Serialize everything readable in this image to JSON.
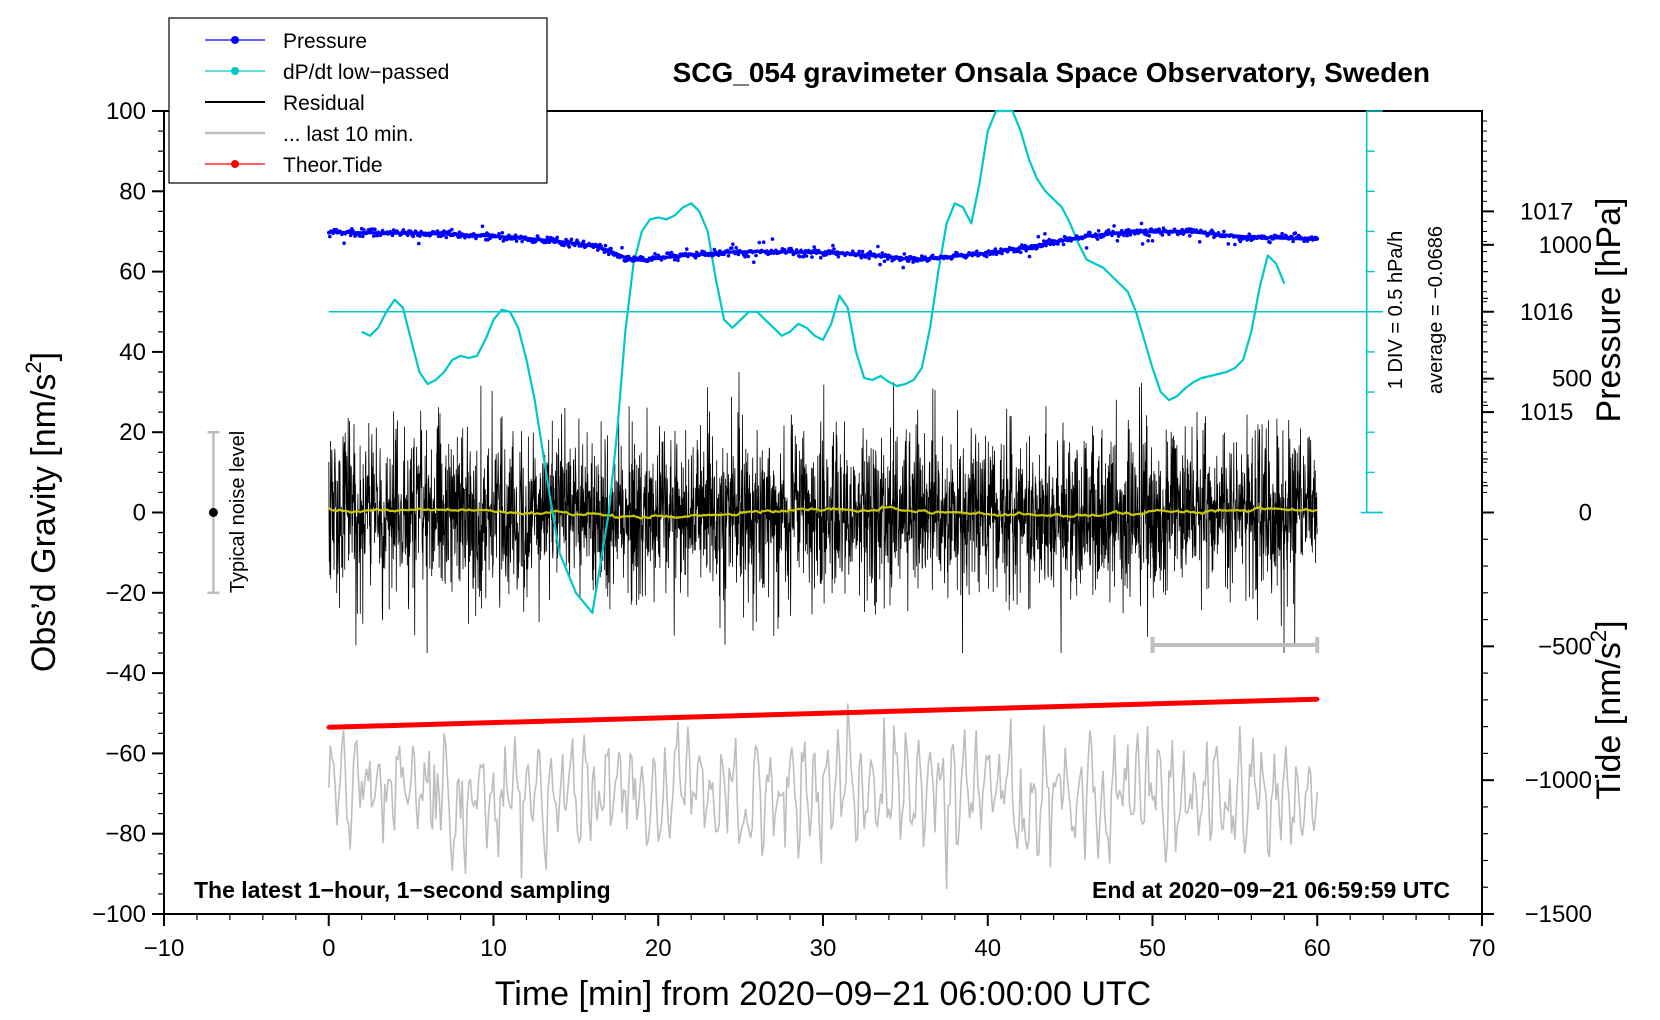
{
  "chart_data": {
    "type": "line",
    "title": "SCG_054 gravimeter Onsala Space Observatory, Sweden",
    "xlabel": "Time [min] from 2020−09−21 06:00:00 UTC",
    "ylabel_left_prefix": "Obs’d Gravity [nm/s",
    "ylabel_left_sup": "2",
    "ylabel_left_suffix": "]",
    "ylabel_right_pressure": "Pressure [hPa]",
    "ylabel_right_tide_prefix": "Tide [nm/s",
    "ylabel_right_tide_sup": "2",
    "ylabel_right_tide_suffix": "]",
    "xlim": [
      -10,
      70
    ],
    "ylim": [
      -100,
      100
    ],
    "x_ticks": [
      -10,
      0,
      10,
      20,
      30,
      40,
      50,
      60,
      70
    ],
    "x_tick_labels": [
      "−10",
      "0",
      "10",
      "20",
      "30",
      "40",
      "50",
      "60",
      "70"
    ],
    "y_ticks": [
      -100,
      -80,
      -60,
      -40,
      -20,
      0,
      20,
      40,
      60,
      80,
      100
    ],
    "y_tick_labels": [
      "−100",
      "−80",
      "−60",
      "−40",
      "−20",
      "0",
      "20",
      "40",
      "60",
      "80",
      "100"
    ],
    "pressure_ticks": [
      1015,
      1016,
      1017
    ],
    "pressure_tick_labels": [
      "1015",
      "1016",
      "1017"
    ],
    "pressure_scale": {
      "hpa_at_gravity_50": 1016,
      "gravity_units_per_hpa": 25
    },
    "tide_ticks": [
      1000,
      500,
      0,
      -500,
      -1000,
      -1500
    ],
    "tide_tick_labels": [
      "1000",
      "500",
      "0",
      "−500",
      "−1000",
      "−1500"
    ],
    "tide_scale": {
      "tide_at_gravity_minus100": -1500,
      "tide_units_per_gravity": 15
    },
    "legend_location": "top-left",
    "legend": [
      {
        "label": "Pressure",
        "color": "#0000ff",
        "marker": true
      },
      {
        "label": "dP/dt low−passed",
        "color": "#00c8c8",
        "marker": true
      },
      {
        "label": "Residual",
        "color": "#000000",
        "marker": false
      },
      {
        "label": "... last 10 min.",
        "color": "#bebebe",
        "marker": false
      },
      {
        "label": "Theor.Tide",
        "color": "#ff0000",
        "marker": true
      }
    ],
    "colors": {
      "pressure": "#0000ff",
      "dpdt": "#00c8c8",
      "residual": "#000000",
      "residual_smooth": "#c8c800",
      "last10": "#bebebe",
      "tide": "#ff0000",
      "noise_bar": "#bebebe"
    },
    "pressure_series": {
      "name": "Pressure",
      "unit": "gravity-axis units",
      "x": [
        0,
        2,
        4,
        6,
        8,
        10,
        12,
        14,
        16,
        17,
        18,
        19,
        20,
        22,
        24,
        26,
        28,
        30,
        32,
        34,
        35,
        36,
        38,
        40,
        42,
        44,
        46,
        48,
        50,
        52,
        54,
        56,
        58,
        60
      ],
      "y": [
        69.8,
        69.7,
        69.6,
        69.5,
        69.2,
        68.8,
        68.3,
        67.5,
        66.5,
        65.3,
        63.5,
        62.8,
        63.3,
        64.2,
        64.8,
        65.0,
        64.9,
        64.7,
        64.3,
        63.7,
        63.2,
        63.1,
        63.8,
        64.6,
        65.8,
        67.3,
        68.8,
        69.7,
        69.9,
        70.1,
        69.2,
        68.6,
        68.3,
        68.0
      ]
    },
    "dpdt_series": {
      "name": "dP/dt low−passed",
      "unit": "gravity-axis units",
      "x": [
        2.0,
        2.5,
        3.0,
        3.5,
        4.0,
        4.5,
        5.0,
        5.5,
        6.0,
        6.5,
        7.0,
        7.5,
        8.0,
        8.5,
        9.0,
        9.5,
        10.0,
        10.5,
        11.0,
        11.5,
        12.0,
        12.5,
        13.0,
        13.5,
        14.0,
        15.0,
        16.0,
        17.0,
        17.5,
        18.0,
        18.5,
        19.0,
        19.5,
        20.0,
        20.5,
        21.0,
        21.5,
        22.0,
        22.5,
        23.0,
        23.5,
        24.0,
        24.5,
        25.0,
        25.5,
        26.0,
        26.5,
        27.0,
        27.5,
        28.0,
        28.5,
        29.0,
        29.5,
        30.0,
        30.5,
        31.0,
        31.5,
        32.0,
        32.5,
        33.0,
        33.5,
        34.0,
        34.5,
        35.0,
        35.5,
        36.0,
        36.5,
        37.0,
        37.5,
        38.0,
        38.5,
        39.0,
        39.5,
        40.0,
        40.5,
        41.0,
        41.5,
        42.0,
        42.5,
        43.0,
        43.5,
        44.0,
        44.5,
        45.0,
        45.5,
        46.0,
        46.5,
        47.0,
        47.5,
        48.0,
        48.5,
        49.0,
        49.5,
        50.0,
        50.5,
        51.0,
        51.5,
        52.0,
        52.5,
        53.0,
        53.5,
        54.0,
        54.5,
        55.0,
        55.5,
        56.0,
        56.5,
        57.0,
        57.5,
        58.0
      ],
      "y": [
        45.0,
        44.0,
        46.0,
        50.0,
        53.0,
        51.0,
        43.0,
        35.0,
        32.0,
        33.0,
        35.0,
        38.0,
        39.0,
        38.5,
        39.0,
        43.0,
        48.0,
        50.5,
        50.0,
        46.0,
        38.0,
        28.0,
        15.0,
        2.0,
        -10.0,
        -20.0,
        -25.0,
        0.0,
        20.0,
        45.0,
        62.0,
        70.0,
        73.0,
        73.5,
        73.0,
        74.0,
        76.0,
        77.0,
        75.0,
        70.0,
        58.0,
        48.0,
        46.0,
        48.0,
        50.0,
        50.0,
        48.0,
        46.0,
        44.0,
        45.0,
        47.0,
        46.0,
        44.0,
        43.0,
        47.0,
        54.0,
        51.0,
        40.0,
        33.5,
        33.0,
        34.0,
        32.5,
        31.5,
        32.0,
        33.0,
        36.0,
        46.0,
        60.0,
        72.0,
        77.0,
        76.0,
        72.0,
        82.0,
        95.0,
        100.0,
        100.0,
        100.0,
        95.0,
        88.0,
        83.0,
        80.0,
        78.0,
        76.0,
        72.0,
        67.0,
        63.0,
        62.0,
        61.0,
        59.0,
        57.0,
        55.0,
        50.0,
        43.0,
        36.0,
        30.0,
        28.0,
        29.0,
        31.0,
        32.5,
        33.5,
        34.0,
        34.5,
        35.0,
        36.0,
        38.0,
        45.0,
        56.0,
        64.0,
        62.0,
        57.0
      ]
    },
    "dpdt_reference": {
      "label_div": "1 DIV = 0.5 hPa/h",
      "label_avg": "average = −0.0686",
      "baseline_y": 50,
      "zero_y": 0,
      "scale_x": 63.0
    },
    "residual": {
      "x_start": 0,
      "x_end": 60,
      "amplitude": 10,
      "max_abs": 35
    },
    "last10": {
      "x_start": 0,
      "x_end": 60,
      "center_y": -70,
      "amplitude": 10,
      "span_start": 50,
      "span_end": 60
    },
    "tide_series": {
      "name": "Theor.Tide",
      "x": [
        0,
        60
      ],
      "y": [
        -53.5,
        -46.5
      ]
    },
    "noise_level": {
      "label": "Typical noise level",
      "x": -7,
      "center": 0,
      "half_range": 20
    },
    "footer_left": "The latest 1−hour, 1−second sampling",
    "footer_right": "End at 2020−09−21 06:59:59 UTC"
  }
}
